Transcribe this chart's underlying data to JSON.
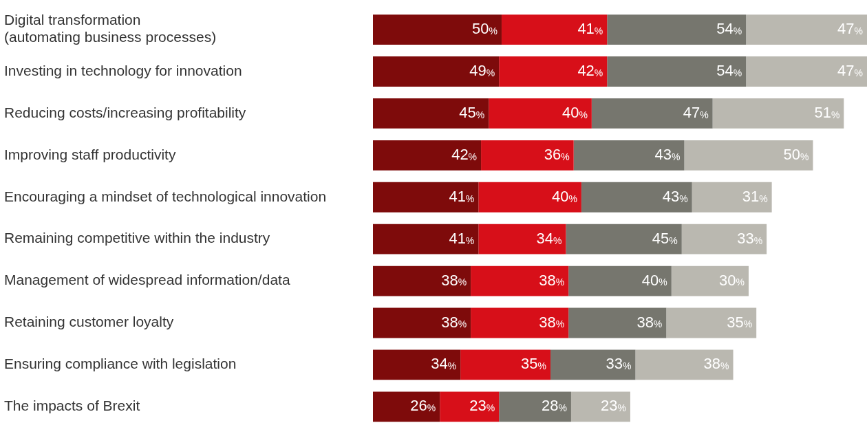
{
  "chart_data": {
    "type": "bar",
    "orientation": "horizontal",
    "stacked": true,
    "tick_labels": "y",
    "legend": false,
    "categories": [
      "Digital transformation\n(automating business processes)",
      "Investing in technology for innovation",
      "Reducing costs/increasing profitability",
      "Improving staff productivity",
      "Encouraging a mindset of technological innovation",
      "Remaining competitive within the industry",
      "Management of widespread information/data",
      "Retaining customer loyalty",
      "Ensuring compliance with legislation",
      "The impacts of Brexit"
    ],
    "series": [
      {
        "color": "#7e0b0b",
        "values": [
          50,
          49,
          45,
          42,
          41,
          41,
          38,
          38,
          34,
          26
        ],
        "value_labels": [
          "50%",
          "49%",
          "45%",
          "42%",
          "41%",
          "41%",
          "38%",
          "38%",
          "34%",
          "26%"
        ]
      },
      {
        "color": "#d70f19",
        "values": [
          41,
          42,
          40,
          36,
          40,
          34,
          38,
          38,
          35,
          23
        ],
        "value_labels": [
          "41%",
          "42%",
          "40%",
          "36%",
          "40%",
          "34%",
          "38%",
          "38%",
          "35%",
          "23%"
        ]
      },
      {
        "color": "#76766e",
        "values": [
          54,
          54,
          47,
          43,
          43,
          45,
          40,
          38,
          33,
          28
        ],
        "value_labels": [
          "54%",
          "54%",
          "47%",
          "43%",
          "43%",
          "45%",
          "40%",
          "38%",
          "33%",
          "28%"
        ]
      },
      {
        "color": "#bab8b0",
        "values": [
          47,
          47,
          51,
          50,
          31,
          33,
          30,
          35,
          38,
          23
        ],
        "value_labels": [
          "47%",
          "47%",
          "51%",
          "50%",
          "31%",
          "33%",
          "30%",
          "35%",
          "38%",
          "23%"
        ]
      }
    ]
  }
}
